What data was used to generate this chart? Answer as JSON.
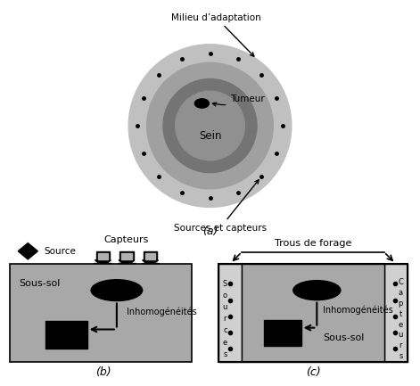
{
  "bg_color": "#ffffff",
  "panel_a_label": "(a)",
  "panel_b_label": "(b)",
  "panel_c_label": "(c)",
  "label_milieu": "Milieu d’adaptation",
  "label_sources_capteurs": "Sources et capteurs",
  "label_sein": "Sein",
  "label_tumeur": "Tumeur",
  "label_source_b": "Source",
  "label_capteurs_b": "Capteurs",
  "label_soussol_b": "Sous-sol",
  "label_inhomo_b": "Inhomogénéités",
  "label_trous": "Trous de forage",
  "label_sources_c": "S\no\nu\nr\nc\ne\ns",
  "label_capteurs_c": "C\na\np\nt\ne\nu\nr\ns",
  "label_inhomo_c": "Inhomogénéités",
  "label_soussol_c": "Sous-sol",
  "color_outer_ring": "#c0c0c0",
  "color_mid_ring": "#a8a8a8",
  "color_breast_dark": "#808080",
  "color_breast_light": "#989898",
  "color_box_gray": "#a8a8a8",
  "color_bore_gray": "#d0d0d0"
}
